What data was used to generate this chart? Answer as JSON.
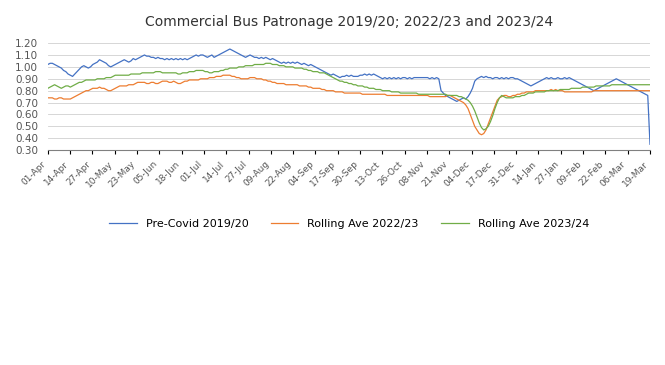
{
  "title": "Commercial Bus Patronage 2019/20; 2022/23 and 2023/24",
  "ylim": [
    0.3,
    1.25
  ],
  "yticks": [
    0.3,
    0.4,
    0.5,
    0.6,
    0.7,
    0.8,
    0.9,
    1.0,
    1.1,
    1.2
  ],
  "xlabel_dates": [
    "01-Apr",
    "14-Apr",
    "27-Apr",
    "10-May",
    "23-May",
    "05-Jun",
    "18-Jun",
    "01-Jul",
    "14-Jul",
    "27-Jul",
    "09-Aug",
    "22-Aug",
    "04-Sep",
    "17-Sep",
    "30-Sep",
    "13-Oct",
    "26-Oct",
    "08-Nov",
    "21-Nov",
    "04-Dec",
    "17-Dec",
    "31-Dec",
    "14-Jan",
    "27-Jan",
    "09-Feb",
    "22-Feb",
    "06-Mar",
    "19-Mar"
  ],
  "colors": {
    "blue": "#4472C4",
    "orange": "#ED7D31",
    "green": "#70AD47"
  },
  "legend": [
    "Pre-Covid 2019/20",
    "Rolling Ave 2022/23",
    "Rolling Ave 2023/24"
  ],
  "blue_series": [
    1.02,
    1.03,
    1.03,
    1.02,
    1.01,
    1.0,
    0.99,
    0.97,
    0.96,
    0.94,
    0.93,
    0.92,
    0.94,
    0.96,
    0.98,
    1.0,
    1.01,
    1.0,
    0.99,
    1.0,
    1.02,
    1.03,
    1.04,
    1.06,
    1.05,
    1.04,
    1.03,
    1.01,
    1.0,
    1.01,
    1.02,
    1.03,
    1.04,
    1.05,
    1.06,
    1.05,
    1.04,
    1.05,
    1.07,
    1.06,
    1.07,
    1.08,
    1.09,
    1.1,
    1.09,
    1.09,
    1.08,
    1.08,
    1.07,
    1.08,
    1.07,
    1.07,
    1.06,
    1.07,
    1.06,
    1.07,
    1.06,
    1.07,
    1.06,
    1.07,
    1.06,
    1.07,
    1.06,
    1.07,
    1.08,
    1.09,
    1.1,
    1.09,
    1.1,
    1.1,
    1.09,
    1.08,
    1.09,
    1.1,
    1.08,
    1.09,
    1.1,
    1.11,
    1.12,
    1.13,
    1.14,
    1.15,
    1.14,
    1.13,
    1.12,
    1.11,
    1.1,
    1.09,
    1.08,
    1.09,
    1.1,
    1.09,
    1.08,
    1.08,
    1.07,
    1.08,
    1.07,
    1.08,
    1.07,
    1.06,
    1.07,
    1.06,
    1.05,
    1.04,
    1.03,
    1.04,
    1.03,
    1.04,
    1.03,
    1.04,
    1.03,
    1.04,
    1.03,
    1.02,
    1.03,
    1.02,
    1.01,
    1.02,
    1.01,
    1.0,
    0.99,
    0.98,
    0.97,
    0.96,
    0.95,
    0.94,
    0.93,
    0.94,
    0.93,
    0.92,
    0.91,
    0.92,
    0.92,
    0.93,
    0.92,
    0.93,
    0.92,
    0.92,
    0.92,
    0.93,
    0.93,
    0.94,
    0.93,
    0.94,
    0.93,
    0.94,
    0.93,
    0.92,
    0.91,
    0.9,
    0.91,
    0.9,
    0.91,
    0.9,
    0.91,
    0.9,
    0.91,
    0.9,
    0.91,
    0.91,
    0.9,
    0.91,
    0.9,
    0.91,
    0.91,
    0.91,
    0.91,
    0.91,
    0.91,
    0.91,
    0.9,
    0.91,
    0.9,
    0.91,
    0.9,
    0.8,
    0.78,
    0.76,
    0.75,
    0.74,
    0.73,
    0.72,
    0.71,
    0.72,
    0.73,
    0.74,
    0.73,
    0.75,
    0.78,
    0.82,
    0.88,
    0.9,
    0.91,
    0.92,
    0.91,
    0.92,
    0.91,
    0.91,
    0.9,
    0.91,
    0.91,
    0.9,
    0.91,
    0.9,
    0.91,
    0.9,
    0.91,
    0.91,
    0.9,
    0.9,
    0.89,
    0.88,
    0.87,
    0.86,
    0.85,
    0.84,
    0.85,
    0.86,
    0.87,
    0.88,
    0.89,
    0.9,
    0.91,
    0.9,
    0.91,
    0.9,
    0.9,
    0.91,
    0.9,
    0.9,
    0.91,
    0.9,
    0.91,
    0.9,
    0.89,
    0.88,
    0.87,
    0.86,
    0.85,
    0.84,
    0.83,
    0.82,
    0.81,
    0.8,
    0.81,
    0.82,
    0.83,
    0.84,
    0.85,
    0.86,
    0.87,
    0.88,
    0.89,
    0.9,
    0.89,
    0.88,
    0.87,
    0.86,
    0.85,
    0.84,
    0.83,
    0.82,
    0.81,
    0.8,
    0.79,
    0.78,
    0.77,
    0.76,
    0.35
  ],
  "orange_series": [
    0.74,
    0.74,
    0.74,
    0.73,
    0.73,
    0.74,
    0.74,
    0.73,
    0.73,
    0.73,
    0.73,
    0.74,
    0.75,
    0.76,
    0.77,
    0.78,
    0.79,
    0.8,
    0.8,
    0.81,
    0.82,
    0.82,
    0.82,
    0.83,
    0.82,
    0.82,
    0.81,
    0.8,
    0.8,
    0.81,
    0.82,
    0.83,
    0.84,
    0.84,
    0.84,
    0.84,
    0.85,
    0.85,
    0.85,
    0.86,
    0.87,
    0.87,
    0.87,
    0.87,
    0.86,
    0.86,
    0.87,
    0.87,
    0.86,
    0.86,
    0.87,
    0.88,
    0.88,
    0.88,
    0.87,
    0.87,
    0.88,
    0.87,
    0.86,
    0.86,
    0.87,
    0.88,
    0.88,
    0.89,
    0.89,
    0.89,
    0.89,
    0.89,
    0.9,
    0.9,
    0.9,
    0.9,
    0.91,
    0.91,
    0.91,
    0.92,
    0.92,
    0.92,
    0.93,
    0.93,
    0.93,
    0.93,
    0.92,
    0.92,
    0.91,
    0.91,
    0.9,
    0.9,
    0.9,
    0.9,
    0.91,
    0.91,
    0.91,
    0.9,
    0.9,
    0.9,
    0.89,
    0.89,
    0.88,
    0.88,
    0.87,
    0.87,
    0.86,
    0.86,
    0.86,
    0.86,
    0.85,
    0.85,
    0.85,
    0.85,
    0.85,
    0.85,
    0.84,
    0.84,
    0.84,
    0.84,
    0.83,
    0.83,
    0.82,
    0.82,
    0.82,
    0.82,
    0.81,
    0.81,
    0.8,
    0.8,
    0.8,
    0.8,
    0.79,
    0.79,
    0.79,
    0.79,
    0.78,
    0.78,
    0.78,
    0.78,
    0.78,
    0.78,
    0.78,
    0.78,
    0.77,
    0.77,
    0.77,
    0.77,
    0.77,
    0.77,
    0.77,
    0.77,
    0.77,
    0.77,
    0.77,
    0.76,
    0.76,
    0.76,
    0.76,
    0.76,
    0.76,
    0.76,
    0.76,
    0.76,
    0.76,
    0.76,
    0.76,
    0.76,
    0.76,
    0.76,
    0.76,
    0.76,
    0.76,
    0.76,
    0.75,
    0.75,
    0.75,
    0.75,
    0.75,
    0.75,
    0.75,
    0.75,
    0.76,
    0.76,
    0.75,
    0.74,
    0.73,
    0.72,
    0.71,
    0.7,
    0.68,
    0.65,
    0.6,
    0.55,
    0.5,
    0.47,
    0.44,
    0.43,
    0.44,
    0.47,
    0.52,
    0.57,
    0.62,
    0.67,
    0.72,
    0.74,
    0.75,
    0.76,
    0.76,
    0.75,
    0.75,
    0.76,
    0.76,
    0.77,
    0.77,
    0.78,
    0.78,
    0.79,
    0.79,
    0.79,
    0.79,
    0.8,
    0.8,
    0.8,
    0.8,
    0.8,
    0.8,
    0.8,
    0.81,
    0.8,
    0.81,
    0.8,
    0.8,
    0.8,
    0.79,
    0.79,
    0.79,
    0.79,
    0.79,
    0.79,
    0.79,
    0.79,
    0.79,
    0.79,
    0.79,
    0.79,
    0.79,
    0.8,
    0.8,
    0.8,
    0.8,
    0.8,
    0.8,
    0.8,
    0.8,
    0.8,
    0.8,
    0.8,
    0.8,
    0.8,
    0.8,
    0.8,
    0.8,
    0.8,
    0.8,
    0.8,
    0.8,
    0.8,
    0.8,
    0.8,
    0.8,
    0.8,
    0.8
  ],
  "green_series": [
    0.82,
    0.83,
    0.84,
    0.85,
    0.84,
    0.83,
    0.82,
    0.83,
    0.84,
    0.84,
    0.83,
    0.84,
    0.85,
    0.86,
    0.87,
    0.87,
    0.88,
    0.89,
    0.89,
    0.89,
    0.89,
    0.89,
    0.9,
    0.9,
    0.9,
    0.9,
    0.91,
    0.91,
    0.91,
    0.92,
    0.93,
    0.93,
    0.93,
    0.93,
    0.93,
    0.93,
    0.93,
    0.94,
    0.94,
    0.94,
    0.94,
    0.94,
    0.95,
    0.95,
    0.95,
    0.95,
    0.95,
    0.95,
    0.96,
    0.96,
    0.96,
    0.95,
    0.95,
    0.95,
    0.95,
    0.95,
    0.95,
    0.95,
    0.94,
    0.94,
    0.95,
    0.95,
    0.95,
    0.96,
    0.96,
    0.96,
    0.97,
    0.97,
    0.97,
    0.97,
    0.96,
    0.96,
    0.95,
    0.95,
    0.96,
    0.96,
    0.96,
    0.97,
    0.97,
    0.98,
    0.98,
    0.99,
    0.99,
    0.99,
    0.99,
    1.0,
    1.0,
    1.0,
    1.01,
    1.01,
    1.01,
    1.01,
    1.02,
    1.02,
    1.02,
    1.02,
    1.02,
    1.03,
    1.03,
    1.03,
    1.02,
    1.02,
    1.02,
    1.01,
    1.01,
    1.01,
    1.0,
    1.0,
    1.0,
    1.0,
    0.99,
    0.99,
    0.99,
    0.99,
    0.98,
    0.98,
    0.97,
    0.97,
    0.96,
    0.96,
    0.96,
    0.95,
    0.95,
    0.95,
    0.94,
    0.93,
    0.92,
    0.91,
    0.9,
    0.89,
    0.88,
    0.88,
    0.87,
    0.87,
    0.86,
    0.86,
    0.85,
    0.85,
    0.84,
    0.84,
    0.84,
    0.83,
    0.83,
    0.82,
    0.82,
    0.82,
    0.81,
    0.81,
    0.81,
    0.8,
    0.8,
    0.8,
    0.8,
    0.79,
    0.79,
    0.79,
    0.79,
    0.78,
    0.78,
    0.78,
    0.78,
    0.78,
    0.78,
    0.78,
    0.78,
    0.77,
    0.77,
    0.77,
    0.77,
    0.77,
    0.77,
    0.77,
    0.77,
    0.77,
    0.77,
    0.77,
    0.77,
    0.77,
    0.76,
    0.76,
    0.76,
    0.76,
    0.76,
    0.75,
    0.75,
    0.74,
    0.73,
    0.72,
    0.7,
    0.67,
    0.63,
    0.58,
    0.53,
    0.49,
    0.47,
    0.48,
    0.5,
    0.54,
    0.59,
    0.65,
    0.7,
    0.74,
    0.76,
    0.75,
    0.74,
    0.74,
    0.74,
    0.74,
    0.75,
    0.75,
    0.75,
    0.76,
    0.76,
    0.77,
    0.78,
    0.78,
    0.78,
    0.79,
    0.79,
    0.79,
    0.79,
    0.79,
    0.8,
    0.8,
    0.8,
    0.8,
    0.8,
    0.8,
    0.81,
    0.81,
    0.81,
    0.81,
    0.81,
    0.82,
    0.82,
    0.82,
    0.82,
    0.82,
    0.83,
    0.83,
    0.83,
    0.83,
    0.83,
    0.83,
    0.84,
    0.84,
    0.84,
    0.84,
    0.84,
    0.84,
    0.84,
    0.85,
    0.85,
    0.85,
    0.85,
    0.85,
    0.85,
    0.85,
    0.85,
    0.85,
    0.85,
    0.85,
    0.85,
    0.85,
    0.85,
    0.85,
    0.85,
    0.85,
    0.85
  ]
}
